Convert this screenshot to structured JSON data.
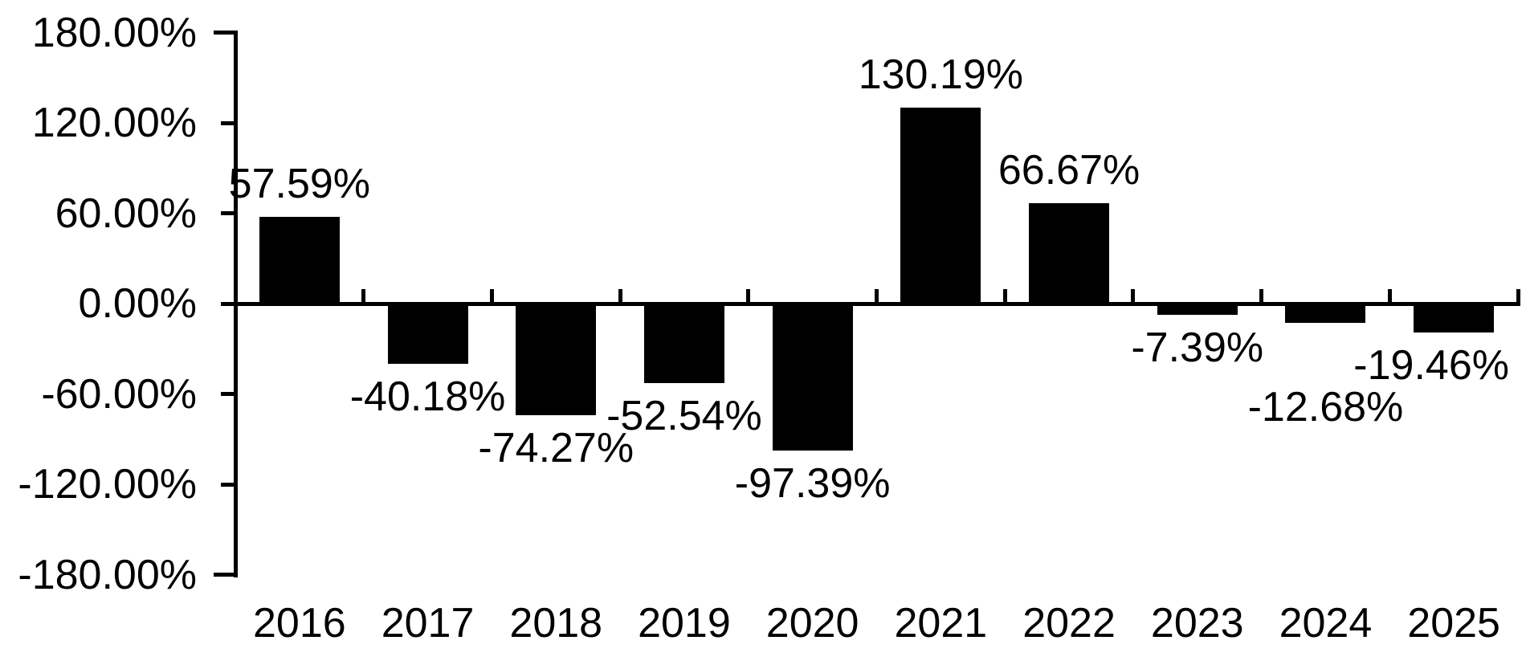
{
  "chart_data": {
    "type": "bar",
    "title": "",
    "xlabel": "",
    "ylabel": "",
    "categories": [
      "2016",
      "2017",
      "2018",
      "2019",
      "2020",
      "2021",
      "2022",
      "2023",
      "2024",
      "2025"
    ],
    "values": [
      57.59,
      -40.18,
      -74.27,
      -52.54,
      -97.39,
      130.19,
      66.67,
      -7.39,
      -12.68,
      -19.46
    ],
    "data_labels": [
      "57.59%",
      "-40.18%",
      "-74.27%",
      "-52.54%",
      "-97.39%",
      "130.19%",
      "66.67%",
      "-7.39%",
      "-12.68%",
      "-19.46%"
    ],
    "ylim": [
      -180,
      180
    ],
    "y_ticks": [
      180,
      120,
      60,
      0,
      -60,
      -120,
      -180
    ],
    "y_tick_labels": [
      "180.00%",
      "120.00%",
      "60.00%",
      "0.00%",
      "-60.00%",
      "-120.00%",
      "-180.00%"
    ],
    "grid": "off",
    "legend": "none",
    "bar_color": "#000000",
    "axis_color": "#000000",
    "text_color": "#000000",
    "background_color": "#ffffff"
  }
}
